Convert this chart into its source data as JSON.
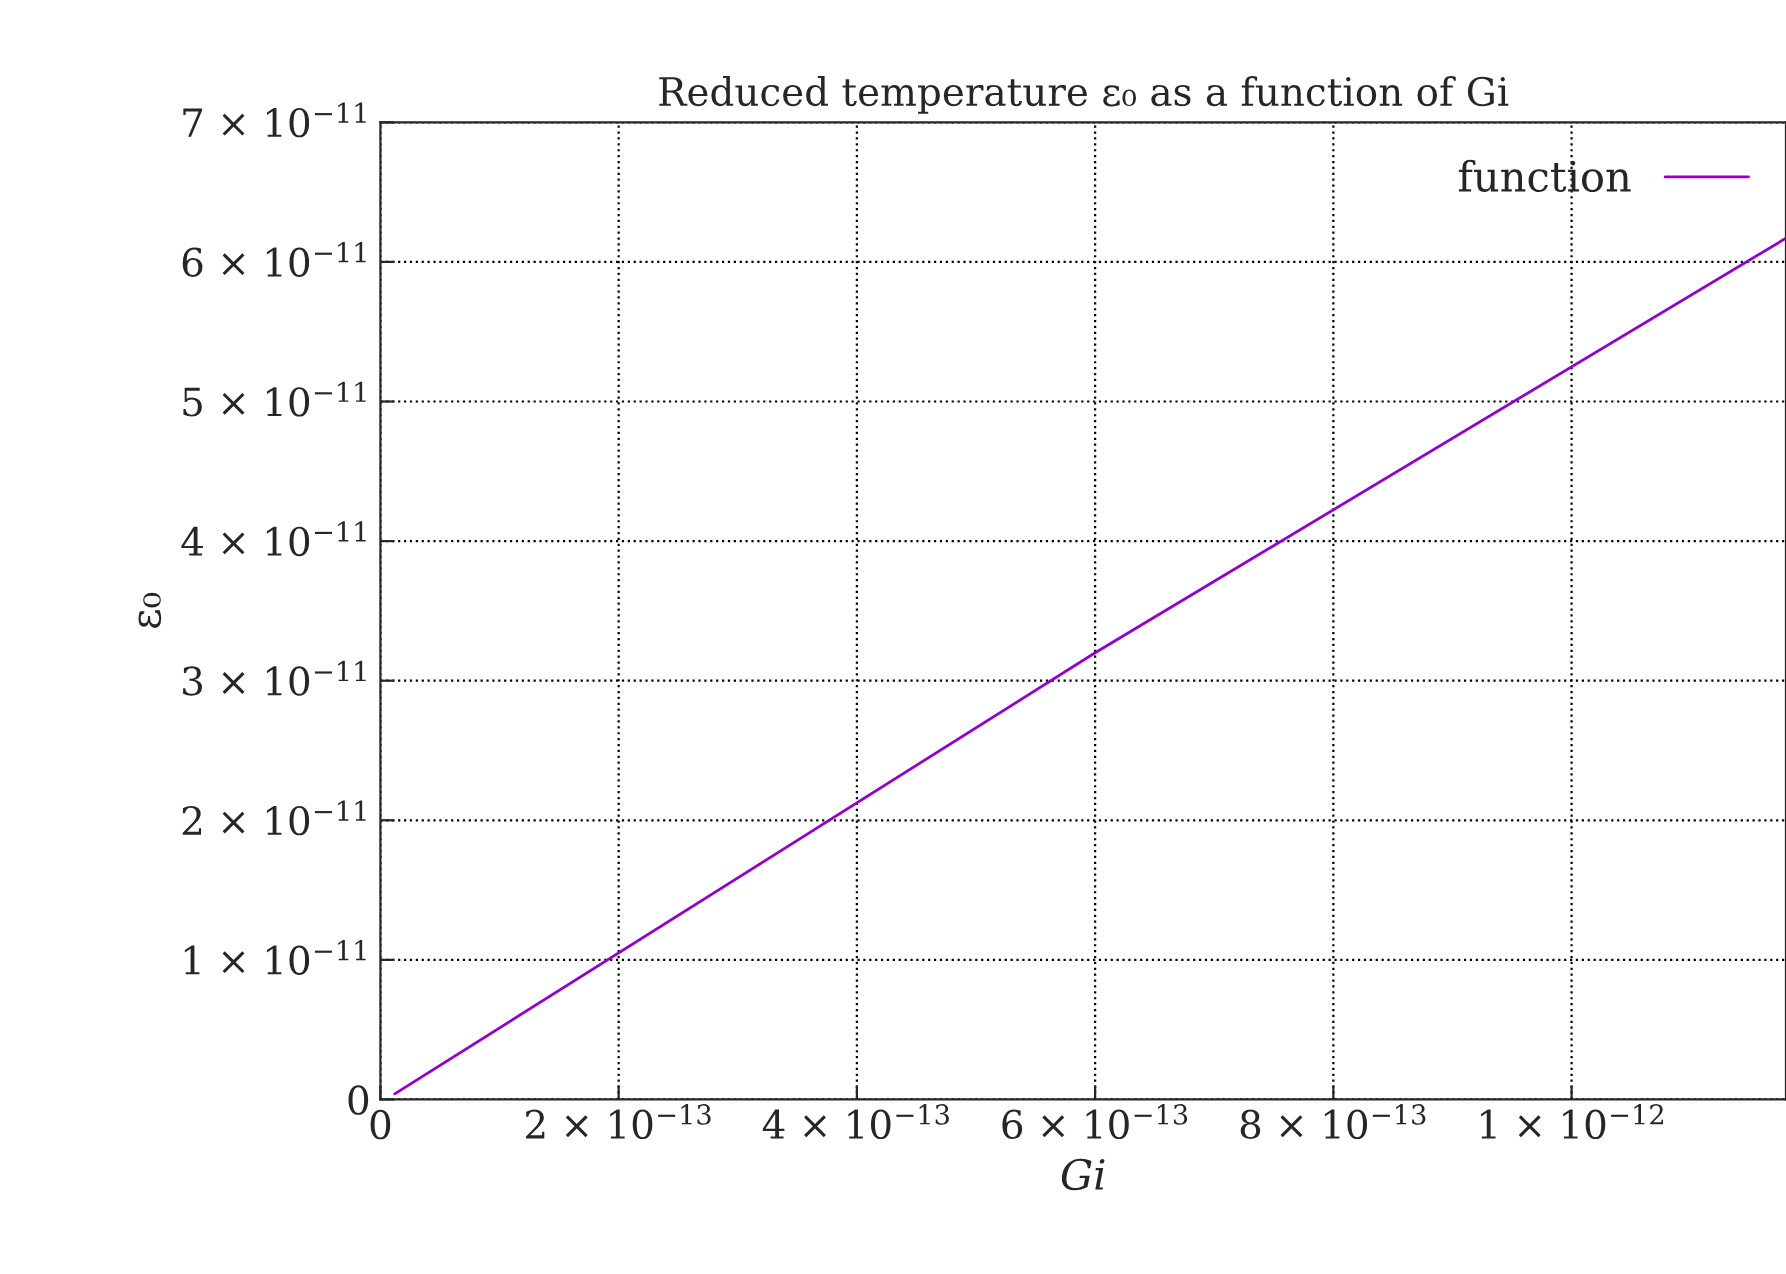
{
  "chart_data": {
    "type": "line",
    "title": "Reduced temperature ε₀ as a function of Gi",
    "xlabel": "Gi",
    "ylabel": "ε₀",
    "series": [
      {
        "name": "function",
        "color": "#9400d3",
        "x": [
          1.2e-14,
          6e-13,
          1.18e-12
        ],
        "values": [
          4e-13,
          3.2e-11,
          6.17e-11
        ]
      }
    ],
    "xlim": [
      0,
      1.18e-12
    ],
    "ylim": [
      0,
      7e-11
    ],
    "xticks": [
      0,
      {
        "value": 2e-13,
        "label": "2 × 10$^{−13}$"
      },
      {
        "value": 4e-13,
        "label": "4 × 10$^{−13}$"
      },
      {
        "value": 6e-13,
        "label": "6 × 10$^{−13}$"
      },
      {
        "value": 8e-13,
        "label": "8 × 10$^{−13}$"
      },
      {
        "value": 1e-12,
        "label": "1 × 10$^{−12}$"
      }
    ],
    "yticks": [
      0,
      {
        "value": 1e-11,
        "label": "1 × 10$^{−11}$"
      },
      {
        "value": 2e-11,
        "label": "2 × 10$^{−11}$"
      },
      {
        "value": 3e-11,
        "label": "3 × 10$^{−11}$"
      },
      {
        "value": 4e-11,
        "label": "4 × 10$^{−11}$"
      },
      {
        "value": 5e-11,
        "label": "5 × 10$^{−11}$"
      },
      {
        "value": 6e-11,
        "label": "6 × 10$^{−11}$"
      },
      {
        "value": 7e-11,
        "label": "7 × 10$^{−11}$"
      }
    ],
    "grid": true,
    "legend": "top right",
    "line_style": "solid",
    "marker": "none"
  }
}
